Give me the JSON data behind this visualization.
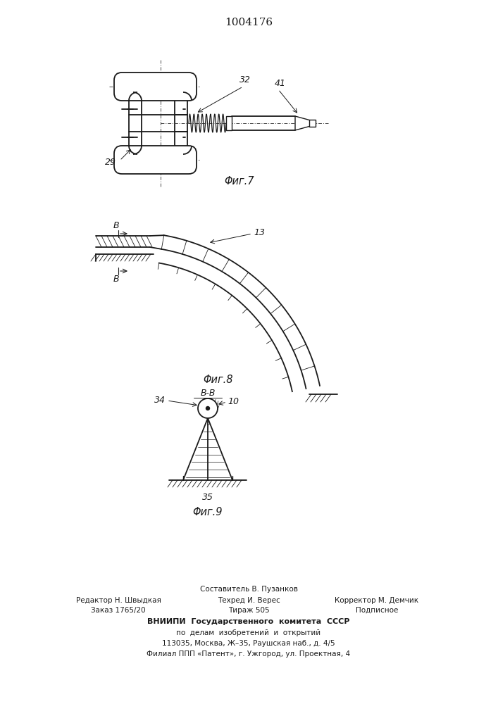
{
  "title": "1004176",
  "fig7_label": "Φиг.7",
  "fig8_label": "Φиг.8",
  "fig9_label": "Φиг.9",
  "label_29": "29",
  "label_32": "32",
  "label_41": "41",
  "label_13": "13",
  "label_34": "34",
  "label_10": "10",
  "label_35": "35",
  "label_B_top": "B",
  "label_B_bot": "B",
  "label_BB": "B-B",
  "footer_line1": "Составитель В. Пузанков",
  "footer_line2a": "Редактор Н. Швыдкая",
  "footer_line2b": "Техред И. Верес",
  "footer_line2c": "Корректор М. Демчик",
  "footer_line3a": "Заказ 1765/20",
  "footer_line3b": "Тираж 505",
  "footer_line3c": "Подписное",
  "footer_line4": "ВНИИПИ  Государственного  комитета  СССР",
  "footer_line5": "по  делам  изобретений  и  открытий",
  "footer_line6": "113035, Москва, Ж–35, Раушская наб., д. 4/5",
  "footer_line7": "Филиал ППП «Патент», г. Ужгород, ул. Проектная, 4",
  "bg_color": "#ffffff",
  "line_color": "#1a1a1a"
}
